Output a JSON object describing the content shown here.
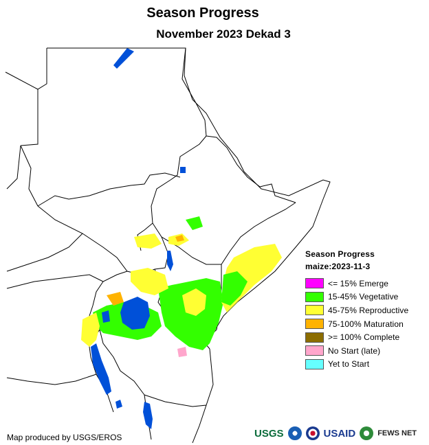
{
  "title": "Season Progress",
  "subtitle": "November 2023 Dekad 3",
  "legend": {
    "title": "Season Progress",
    "subtitle": "maize:2023-11-3",
    "items": [
      {
        "label": "<= 15% Emerge",
        "color": "#ff00ff"
      },
      {
        "label": "15-45% Vegetative",
        "color": "#33ff00"
      },
      {
        "label": "45-75% Reproductive",
        "color": "#ffff33"
      },
      {
        "label": "75-100% Maturation",
        "color": "#ffb300"
      },
      {
        "label": ">= 100% Complete",
        "color": "#8c6d00"
      },
      {
        "label": "No Start (late)",
        "color": "#ffa6cc"
      },
      {
        "label": "Yet to Start",
        "color": "#66ffff"
      }
    ]
  },
  "credit": "Map produced by USGS/EROS",
  "logos": {
    "usgs": "USGS",
    "usaid": "USAID",
    "fews": "FEWS NET"
  },
  "colors": {
    "water": "#0050d8",
    "border": "#000000",
    "vegetative": "#33ff00",
    "reproductive": "#ffff33",
    "maturation": "#ffb300",
    "no_start": "#ffa6cc"
  }
}
